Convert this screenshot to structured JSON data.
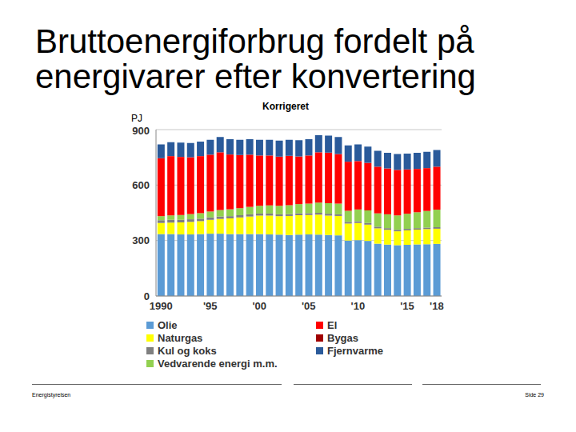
{
  "chart_data": {
    "type": "bar",
    "title": "Bruttoenergiforbrug fordelt på energivarer efter konvertering",
    "subtitle": "Korrigeret",
    "y_label": "PJ",
    "footer_left": "Energistyrelsen",
    "footer_right": "Side 29",
    "stacked": true,
    "grid": true,
    "ylim": [
      0,
      900
    ],
    "yticks": [
      0,
      300,
      600,
      900
    ],
    "categories": [
      "1990",
      null,
      null,
      null,
      null,
      "'95",
      null,
      null,
      null,
      null,
      "'00",
      null,
      null,
      null,
      null,
      "'05",
      null,
      null,
      null,
      null,
      "'10",
      null,
      null,
      null,
      null,
      "'15",
      null,
      null,
      "'18"
    ],
    "series": [
      {
        "name": "Olie",
        "color": "#5b9bd5",
        "values": [
          335,
          335,
          333,
          333,
          335,
          337,
          337,
          335,
          335,
          335,
          335,
          333,
          332,
          330,
          332,
          333,
          332,
          330,
          328,
          300,
          302,
          298,
          283,
          278,
          275,
          277,
          279,
          280,
          282
        ]
      },
      {
        "name": "Naturgas",
        "color": "#ffff00",
        "values": [
          60,
          62,
          65,
          68,
          70,
          75,
          80,
          85,
          90,
          95,
          100,
          102,
          100,
          103,
          105,
          105,
          108,
          105,
          105,
          92,
          93,
          88,
          83,
          80,
          75,
          78,
          80,
          82,
          82
        ]
      },
      {
        "name": "Kul og koks",
        "color": "#7f7f7f",
        "values": [
          15,
          15,
          14,
          14,
          13,
          13,
          13,
          12,
          12,
          12,
          11,
          11,
          10,
          10,
          10,
          10,
          10,
          10,
          9,
          9,
          9,
          9,
          9,
          9,
          8,
          8,
          8,
          8,
          8
        ]
      },
      {
        "name": "Vedvarende energi m.m.",
        "color": "#92d050",
        "values": [
          22,
          24,
          26,
          28,
          30,
          32,
          35,
          37,
          38,
          40,
          42,
          44,
          46,
          48,
          50,
          52,
          55,
          57,
          58,
          60,
          64,
          68,
          72,
          75,
          78,
          82,
          86,
          90,
          95
        ]
      },
      {
        "name": "El",
        "color": "#ff0000",
        "values": [
          312,
          320,
          314,
          307,
          308,
          307,
          312,
          296,
          287,
          282,
          271,
          269,
          265,
          266,
          257,
          259,
          272,
          273,
          267,
          265,
          261,
          256,
          252,
          247,
          246,
          239,
          234,
          231,
          232
        ]
      },
      {
        "name": "Bygas",
        "color": "#a00000",
        "values": [
          1,
          1,
          1,
          1,
          1,
          1,
          1,
          1,
          1,
          1,
          1,
          1,
          1,
          1,
          1,
          1,
          1,
          1,
          1,
          1,
          1,
          1,
          1,
          1,
          1,
          1,
          1,
          1,
          1
        ]
      },
      {
        "name": "Fjernvarme",
        "color": "#2a5a9a",
        "values": [
          75,
          75,
          77,
          77,
          78,
          80,
          82,
          82,
          82,
          83,
          85,
          85,
          86,
          87,
          88,
          88,
          92,
          92,
          92,
          88,
          90,
          88,
          85,
          85,
          85,
          85,
          87,
          88,
          90
        ]
      }
    ]
  }
}
